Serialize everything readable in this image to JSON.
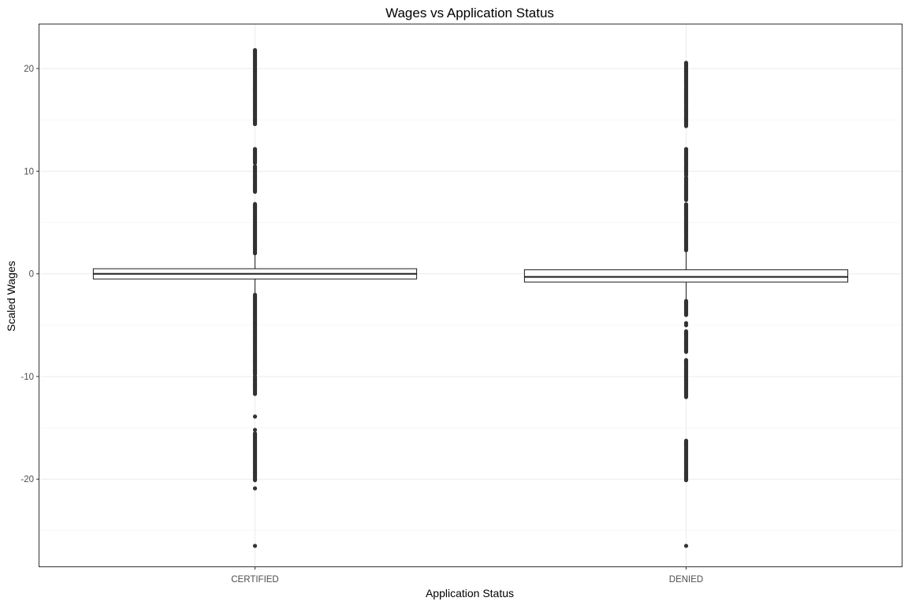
{
  "chart_data": {
    "type": "boxplot",
    "title": "Wages vs Application Status",
    "xlabel": "Application Status",
    "ylabel": "Scaled Wages",
    "categories": [
      "CERTIFIED",
      "DENIED"
    ],
    "ylim": [
      -28.5,
      24.3
    ],
    "yticks": [
      -20,
      -10,
      0,
      10,
      20
    ],
    "grid": true,
    "legend": "none",
    "colors": {
      "box_stroke": "#1a1a1a",
      "outlier": "#333333",
      "panel_border": "#333333",
      "grid": "#ebebeb",
      "tick_label": "#4d4d4d"
    },
    "boxes": [
      {
        "category": "CERTIFIED",
        "q1": -0.5,
        "median": 0.0,
        "q3": 0.5,
        "whisker_low": -2.0,
        "whisker_high": 2.0,
        "outlier_bands": [
          [
            2.0,
            6.8
          ],
          [
            8.0,
            10.5
          ],
          [
            10.8,
            12.2
          ],
          [
            14.6,
            21.8
          ],
          [
            -2.0,
            -9.8
          ],
          [
            -10.0,
            -11.7
          ],
          [
            -15.5,
            -20.1
          ]
        ],
        "outliers": [
          -26.5,
          -20.9,
          -13.9,
          -15.2,
          12.1,
          14.6
        ]
      },
      {
        "category": "DENIED",
        "q1": -0.8,
        "median": -0.3,
        "q3": 0.4,
        "whisker_low": -2.6,
        "whisker_high": 2.3,
        "outlier_bands": [
          [
            2.3,
            6.8
          ],
          [
            7.2,
            9.4
          ],
          [
            9.6,
            12.2
          ],
          [
            14.4,
            20.6
          ],
          [
            -2.6,
            -4.0
          ],
          [
            -5.6,
            -7.6
          ],
          [
            -8.4,
            -12.0
          ],
          [
            -16.2,
            -20.1
          ]
        ],
        "outliers": [
          -26.5,
          -4.8,
          -5.0
        ]
      }
    ]
  }
}
